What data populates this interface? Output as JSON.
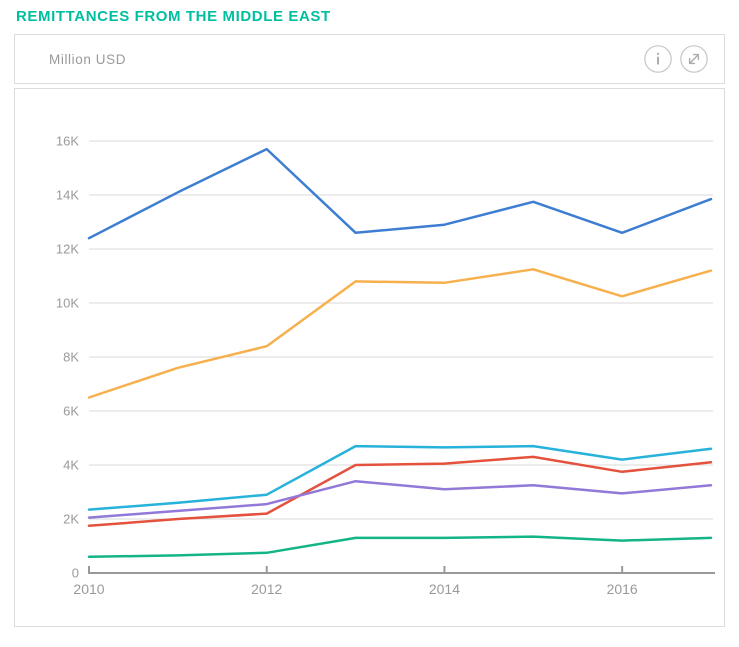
{
  "page": {
    "title": "REMITTANCES FROM THE MIDDLE EAST"
  },
  "card_header": {
    "units_label": "Million USD",
    "info_icon": "info-circle",
    "expand_icon": "expand-diagonal-arrows"
  },
  "colors": {
    "title": "#00BFA0",
    "card_border": "#DCDCDC",
    "grid": "#D9D9D9",
    "axis": "#999999",
    "tick_label": "#9A9A9A",
    "icon": "#ABABAB"
  },
  "chart_data": {
    "type": "line",
    "title": "REMITTANCES FROM THE MIDDLE EAST",
    "units": "Million USD",
    "x": [
      2010,
      2011,
      2012,
      2013,
      2014,
      2015,
      2016,
      2017
    ],
    "x_ticks": [
      2010,
      2012,
      2014,
      2016
    ],
    "x_tick_labels": [
      "2010",
      "2012",
      "2014",
      "2016"
    ],
    "y_ticks": [
      0,
      2000,
      4000,
      6000,
      8000,
      10000,
      12000,
      14000,
      16000
    ],
    "y_tick_labels": [
      "0",
      "2K",
      "4K",
      "6K",
      "8K",
      "10K",
      "12K",
      "14K",
      "16K"
    ],
    "ylim": [
      0,
      16000
    ],
    "grid": true,
    "legend": "none",
    "series": [
      {
        "name": "blue",
        "color": "#3E7ED2",
        "values": [
          12400,
          14100,
          15700,
          12600,
          12900,
          13750,
          12600,
          13850
        ]
      },
      {
        "name": "amber",
        "color": "#F6B04E",
        "values": [
          6500,
          7600,
          8400,
          10800,
          10750,
          11250,
          10250,
          11200
        ]
      },
      {
        "name": "cyan",
        "color": "#27B2DB",
        "values": [
          2350,
          2600,
          2900,
          4700,
          4650,
          4700,
          4200,
          4600
        ]
      },
      {
        "name": "red",
        "color": "#E4523D",
        "values": [
          1750,
          2000,
          2200,
          4000,
          4050,
          4300,
          3750,
          4100
        ]
      },
      {
        "name": "purple",
        "color": "#9278D8",
        "values": [
          2050,
          2300,
          2550,
          3400,
          3100,
          3250,
          2950,
          3250
        ]
      },
      {
        "name": "green",
        "color": "#14B489",
        "values": [
          600,
          650,
          750,
          1300,
          1300,
          1350,
          1200,
          1300
        ]
      }
    ]
  }
}
